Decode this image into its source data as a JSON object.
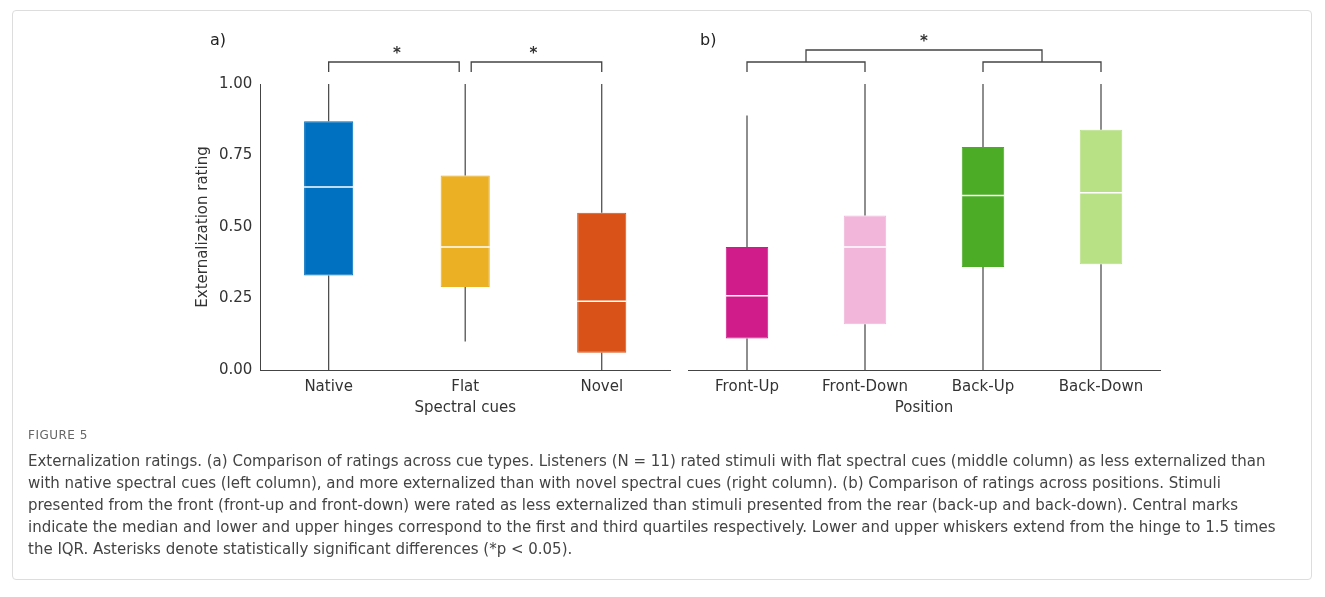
{
  "chart_data": [
    {
      "type": "box",
      "title": "a)",
      "xlabel": "Spectral cues",
      "ylabel": "Externalization rating",
      "categories": [
        "Native",
        "Flat",
        "Novel"
      ],
      "colors": [
        "#0070c0",
        "#ebb024",
        "#d95319"
      ],
      "boxes": [
        {
          "low": 0,
          "q1": 0.33,
          "median": 0.64,
          "q3": 0.87,
          "high": 1
        },
        {
          "low": 0.1,
          "q1": 0.29,
          "median": 0.43,
          "q3": 0.68,
          "high": 1
        },
        {
          "low": 0,
          "q1": 0.06,
          "median": 0.24,
          "q3": 0.55,
          "high": 1
        }
      ],
      "ylim": [
        0,
        1
      ],
      "yticks": [
        {
          "value": 0,
          "label": "0.00"
        },
        {
          "value": 0.25,
          "label": "0.25"
        },
        {
          "value": 0.5,
          "label": "0.50"
        },
        {
          "value": 0.75,
          "label": "0.75"
        },
        {
          "value": 1,
          "label": "1.00"
        }
      ],
      "annotations": [
        "*",
        "*"
      ]
    },
    {
      "type": "box",
      "title": "b)",
      "xlabel": "Position",
      "categories": [
        "Front-Up",
        "Front-Down",
        "Back-Up",
        "Back-Down"
      ],
      "colors": [
        "#d01c8b",
        "#f1b6da",
        "#4dac26",
        "#b8e186"
      ],
      "boxes": [
        {
          "low": 0,
          "q1": 0.11,
          "median": 0.26,
          "q3": 0.43,
          "high": 0.89
        },
        {
          "low": 0,
          "q1": 0.16,
          "median": 0.43,
          "q3": 0.54,
          "high": 1
        },
        {
          "low": 0,
          "q1": 0.36,
          "median": 0.61,
          "q3": 0.78,
          "high": 1
        },
        {
          "low": 0,
          "q1": 0.37,
          "median": 0.62,
          "q3": 0.84,
          "high": 1
        }
      ],
      "ylim": [
        0,
        1
      ],
      "tick_labels": "x",
      "annotations": [
        "*",
        "FIGURE 5",
        "Externalization ratings. (a) Comparison of ratings across cue types. Listeners (N = 11) rated stimuli with flat spectral cues (middle column) as less externalized than with native spectral cues (left column), and more externalized than with novel spectral cues (right column). (b) Comparison of ratings across positions. Stimuli presented from the front (front-up and front-down) were rated as less externalized than stimuli presented from the rear (back-up and back-down). Central marks indicate the median and lower and upper hinges correspond to the first and third quartiles respectively. Lower and upper whiskers extend from the hinge to 1.5 times the IQR. Asterisks denote statistically significant differences (*p < 0.05)."
      ]
    }
  ]
}
